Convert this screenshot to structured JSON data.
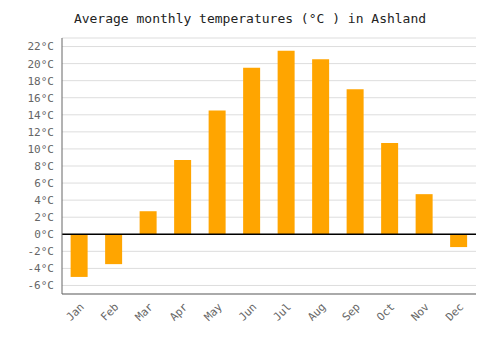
{
  "chart_data": {
    "type": "bar",
    "title": "Average monthly temperatures (°C ) in Ashland",
    "categories": [
      "Jan",
      "Feb",
      "Mar",
      "Apr",
      "May",
      "Jun",
      "Jul",
      "Aug",
      "Sep",
      "Oct",
      "Nov",
      "Dec"
    ],
    "values": [
      -5.0,
      -3.5,
      2.7,
      8.7,
      14.5,
      19.5,
      21.5,
      20.5,
      17.0,
      10.7,
      4.7,
      -1.5
    ],
    "color": "#FFA500",
    "ylim": [
      -7,
      23
    ],
    "yticks": [
      {
        "value": -6,
        "label": "-6°C"
      },
      {
        "value": -4,
        "label": "-4°C"
      },
      {
        "value": -2,
        "label": "-2°C"
      },
      {
        "value": 0,
        "label": "0°C"
      },
      {
        "value": 2,
        "label": "2°C"
      },
      {
        "value": 4,
        "label": "4°C"
      },
      {
        "value": 6,
        "label": "6°C"
      },
      {
        "value": 8,
        "label": "8°C"
      },
      {
        "value": 10,
        "label": "10°C"
      },
      {
        "value": 12,
        "label": "12°C"
      },
      {
        "value": 14,
        "label": "14°C"
      },
      {
        "value": 16,
        "label": "16°C"
      },
      {
        "value": 18,
        "label": "18°C"
      },
      {
        "value": 20,
        "label": "20°C"
      },
      {
        "value": 22,
        "label": "22°C"
      }
    ],
    "grid": true
  }
}
